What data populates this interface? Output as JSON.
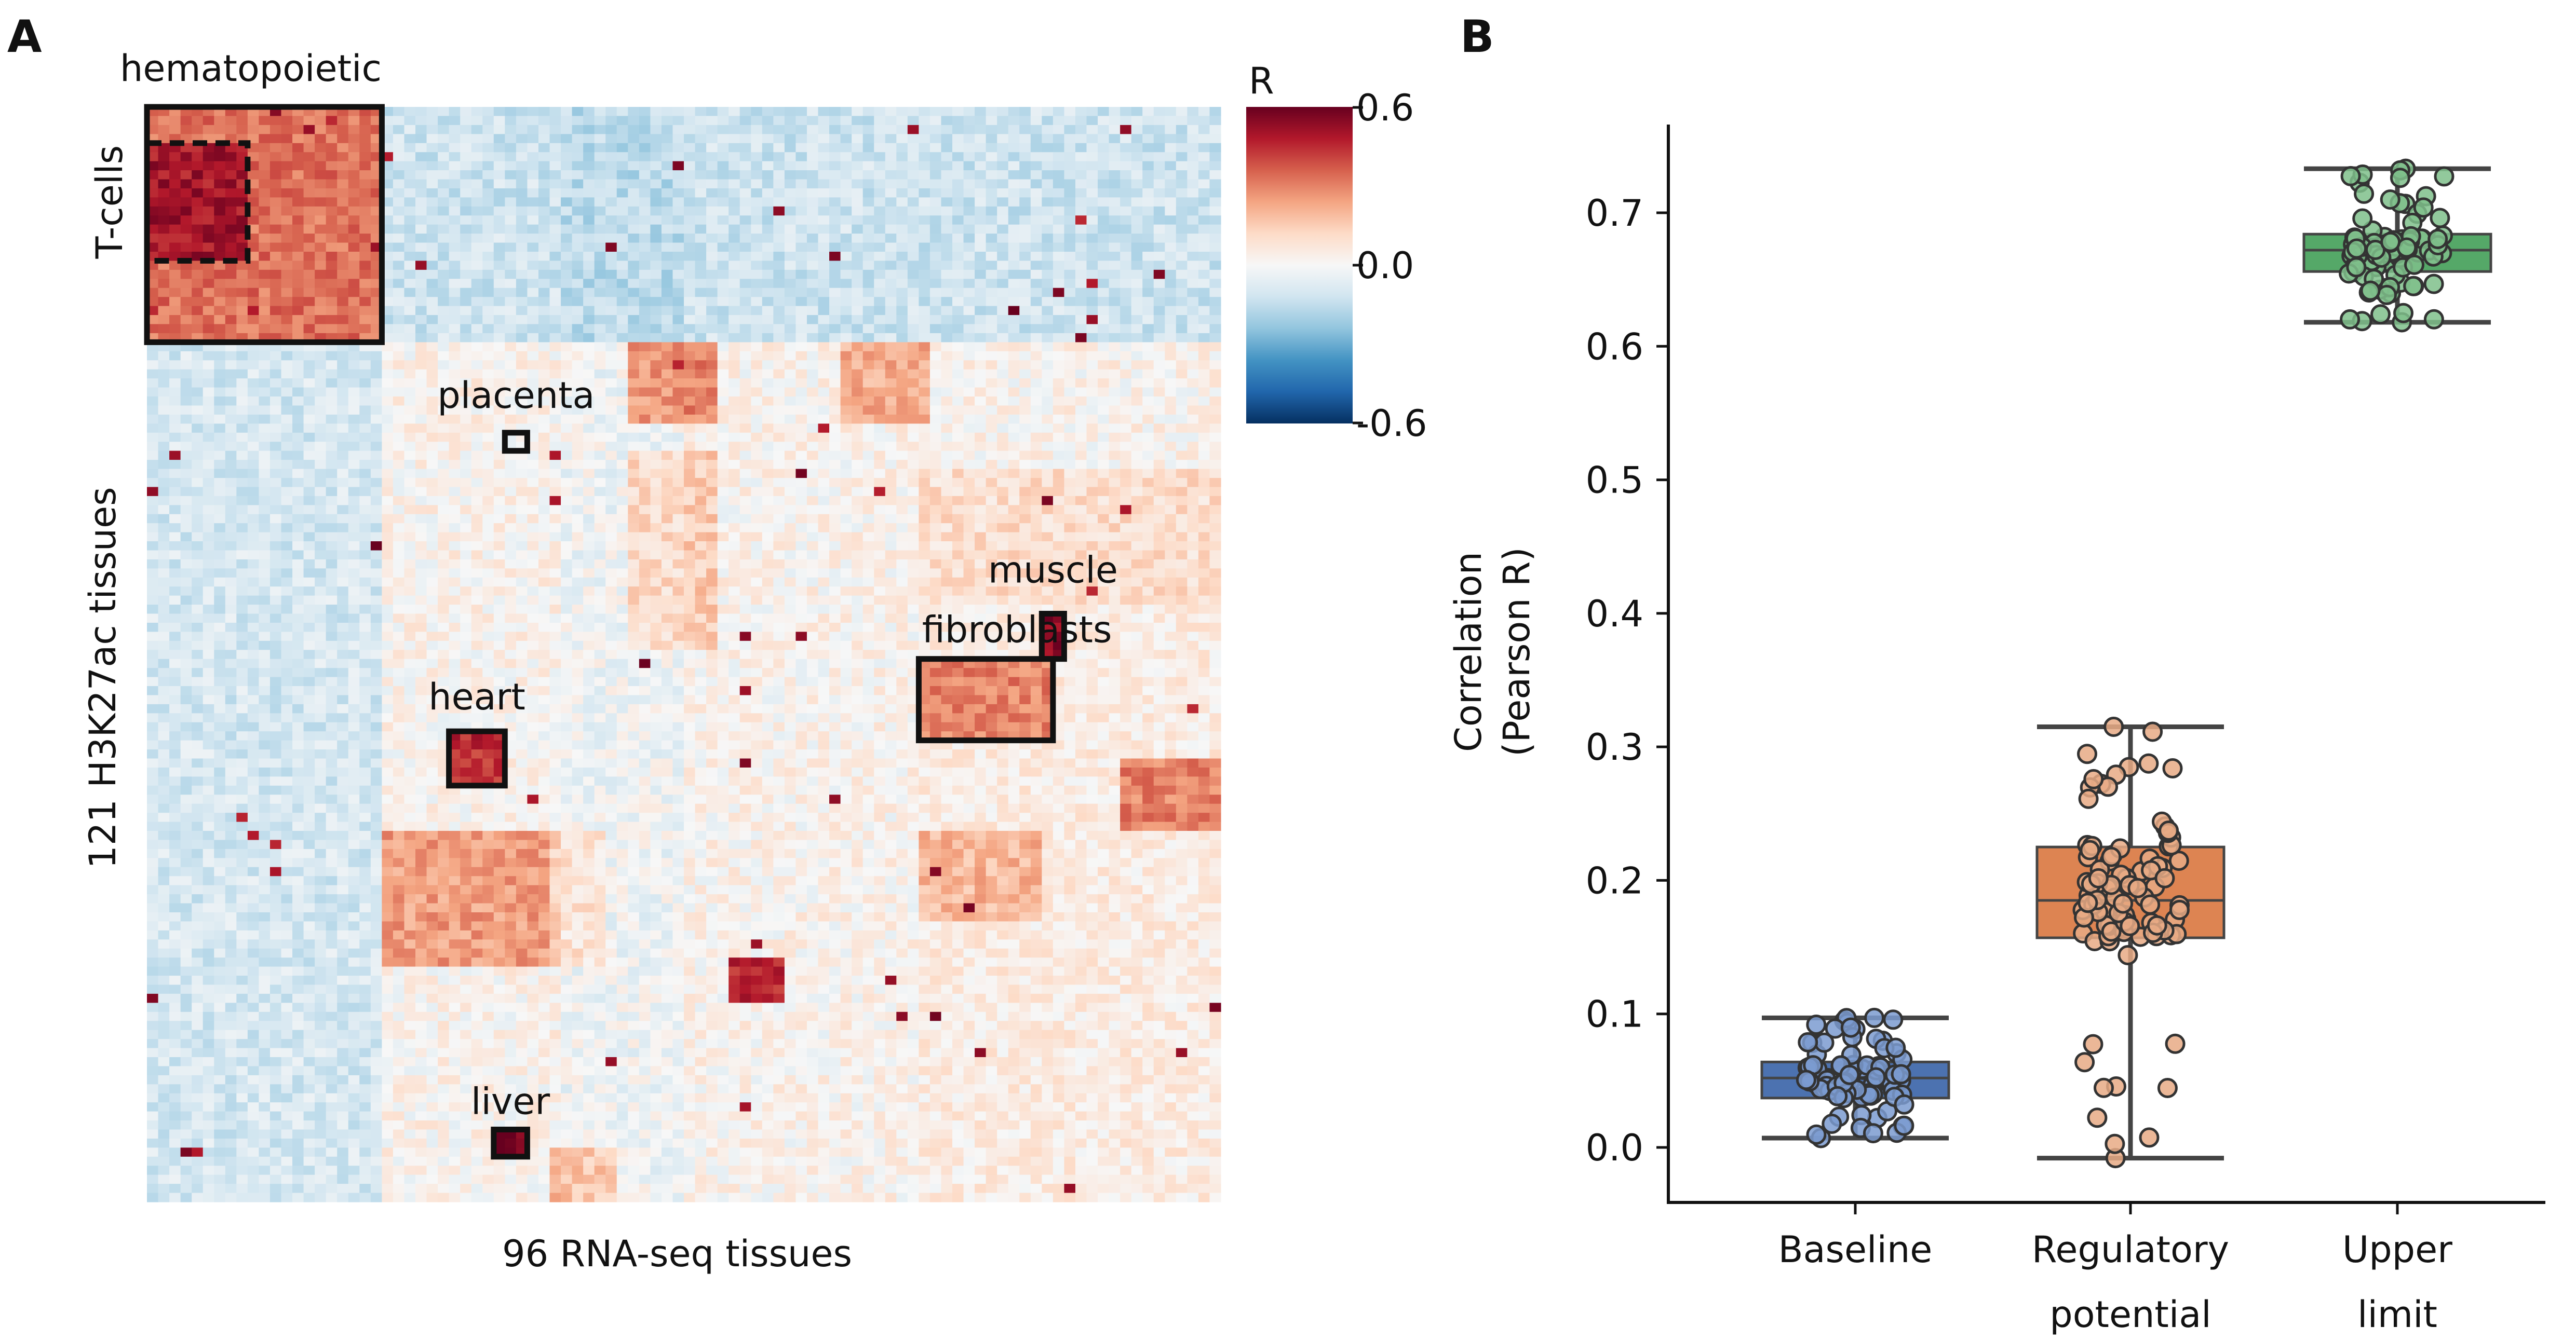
{
  "panels": {
    "a_label": "A",
    "b_label": "B"
  },
  "heatmap": {
    "xlabel": "96 RNA-seq tissues",
    "ylabel": "121 H3K27ac tissues",
    "n_cols": 96,
    "n_rows": 121,
    "colorbar": {
      "title": "R",
      "ticks": [
        "0.6",
        "0.0",
        "-0.6"
      ],
      "vmin": -0.6,
      "vmax": 0.6,
      "colors": [
        "#053061",
        "#2166ac",
        "#4393c3",
        "#92c5de",
        "#d1e5f0",
        "#f7f7f7",
        "#fddbc7",
        "#f4a582",
        "#d6604d",
        "#b2182b",
        "#67001f"
      ]
    },
    "annotations": [
      {
        "label": "hematopoietic",
        "rows": [
          0,
          26
        ],
        "cols": [
          0,
          21
        ],
        "style": "solid"
      },
      {
        "label": "T-cells",
        "rows": [
          4,
          17
        ],
        "cols": [
          0,
          9
        ],
        "style": "dashed"
      },
      {
        "label": "placenta",
        "rows": [
          36,
          38
        ],
        "cols": [
          32,
          34
        ],
        "style": "solid"
      },
      {
        "label": "muscle",
        "rows": [
          56,
          61
        ],
        "cols": [
          80,
          82
        ],
        "style": "solid"
      },
      {
        "label": "fibroblasts",
        "rows": [
          61,
          70
        ],
        "cols": [
          69,
          81
        ],
        "style": "solid"
      },
      {
        "label": "heart",
        "rows": [
          69,
          75
        ],
        "cols": [
          27,
          32
        ],
        "style": "solid"
      },
      {
        "label": "liver",
        "rows": [
          113,
          116
        ],
        "cols": [
          31,
          34
        ],
        "style": "solid"
      }
    ],
    "color_blocks": [
      {
        "rows": [
          0,
          26
        ],
        "cols": [
          0,
          21
        ],
        "value": 0.33
      },
      {
        "rows": [
          4,
          17
        ],
        "cols": [
          0,
          9
        ],
        "value": 0.5
      },
      {
        "rows": [
          0,
          26
        ],
        "cols": [
          21,
          96
        ],
        "value": -0.12
      },
      {
        "rows": [
          26,
          121
        ],
        "cols": [
          0,
          21
        ],
        "value": -0.1
      },
      {
        "rows": [
          26,
          35
        ],
        "cols": [
          43,
          51
        ],
        "value": 0.3
      },
      {
        "rows": [
          26,
          35
        ],
        "cols": [
          62,
          70
        ],
        "value": 0.22
      },
      {
        "rows": [
          38,
          60
        ],
        "cols": [
          43,
          51
        ],
        "value": 0.15
      },
      {
        "rows": [
          40,
          60
        ],
        "cols": [
          69,
          96
        ],
        "value": 0.1
      },
      {
        "rows": [
          55,
          121
        ],
        "cols": [
          69,
          96
        ],
        "value": 0.05
      },
      {
        "rows": [
          61,
          70
        ],
        "cols": [
          69,
          81
        ],
        "value": 0.3
      },
      {
        "rows": [
          56,
          61
        ],
        "cols": [
          80,
          82
        ],
        "value": 0.55
      },
      {
        "rows": [
          69,
          75
        ],
        "cols": [
          27,
          32
        ],
        "value": 0.45
      },
      {
        "rows": [
          72,
          80
        ],
        "cols": [
          87,
          96
        ],
        "value": 0.3
      },
      {
        "rows": [
          80,
          95
        ],
        "cols": [
          21,
          36
        ],
        "value": 0.25
      },
      {
        "rows": [
          80,
          95
        ],
        "cols": [
          36,
          41
        ],
        "value": 0.12
      },
      {
        "rows": [
          80,
          90
        ],
        "cols": [
          69,
          80
        ],
        "value": 0.2
      },
      {
        "rows": [
          94,
          99
        ],
        "cols": [
          52,
          57
        ],
        "value": 0.45
      },
      {
        "rows": [
          113,
          116
        ],
        "cols": [
          31,
          34
        ],
        "value": 0.6
      },
      {
        "rows": [
          115,
          121
        ],
        "cols": [
          36,
          42
        ],
        "value": 0.2
      }
    ]
  },
  "chart_data": {
    "type": "box",
    "ylabel": "Correlation\n(Pearson R)",
    "ylabel_lines": [
      "Correlation",
      "(Pearson R)"
    ],
    "ylim": [
      -0.045,
      0.76
    ],
    "yticks": [
      "0.0",
      "0.1",
      "0.2",
      "0.3",
      "0.4",
      "0.5",
      "0.6",
      "0.7"
    ],
    "ytick_values": [
      0.0,
      0.1,
      0.2,
      0.3,
      0.4,
      0.5,
      0.6,
      0.7
    ],
    "series": [
      {
        "name": "Baseline",
        "label_lines": [
          "Baseline"
        ],
        "color": "#4c72b0",
        "point_color": "#7b9bd0",
        "whisker_low": 0.007,
        "q1": 0.037,
        "median": 0.052,
        "q3": 0.064,
        "whisker_high": 0.097,
        "n_points": 96
      },
      {
        "name": "Regulatory potential",
        "label_lines": [
          "Regulatory",
          "potential"
        ],
        "color": "#dd8452",
        "point_color": "#e8aa85",
        "whisker_low": -0.008,
        "q1": 0.157,
        "median": 0.185,
        "q3": 0.225,
        "whisker_high": 0.315,
        "n_points": 96
      },
      {
        "name": "Upper limit",
        "label_lines": [
          "Upper",
          "limit"
        ],
        "color": "#55a868",
        "point_color": "#7fbf8b",
        "whisker_low": 0.618,
        "q1": 0.656,
        "median": 0.672,
        "q3": 0.684,
        "whisker_high": 0.733,
        "n_points": 96
      }
    ]
  }
}
